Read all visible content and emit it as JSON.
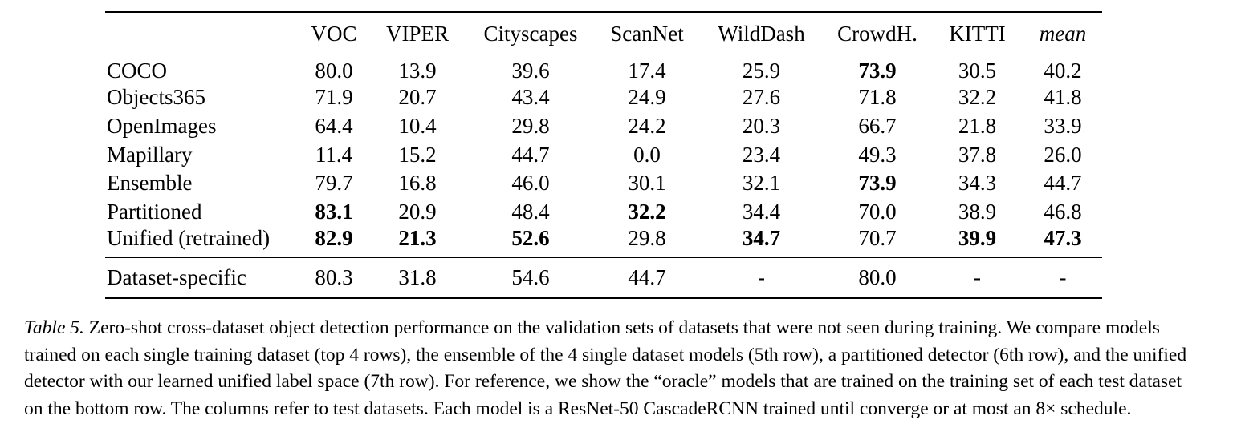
{
  "table": {
    "columns": [
      "",
      "VOC",
      "VIPER",
      "Cityscapes",
      "ScanNet",
      "WildDash",
      "CrowdH.",
      "KITTI",
      "mean"
    ],
    "rows": [
      {
        "name": "COCO",
        "values": [
          "80.0",
          "13.9",
          "39.6",
          "17.4",
          "25.9",
          "73.9",
          "30.5",
          "40.2"
        ],
        "bold": [
          5
        ]
      },
      {
        "name": "Objects365",
        "values": [
          "71.9",
          "20.7",
          "43.4",
          "24.9",
          "27.6",
          "71.8",
          "32.2",
          "41.8"
        ],
        "bold": []
      },
      {
        "name": "OpenImages",
        "values": [
          "64.4",
          "10.4",
          "29.8",
          "24.2",
          "20.3",
          "66.7",
          "21.8",
          "33.9"
        ],
        "bold": []
      },
      {
        "name": "Mapillary",
        "values": [
          "11.4",
          "15.2",
          "44.7",
          "0.0",
          "23.4",
          "49.3",
          "37.8",
          "26.0"
        ],
        "bold": []
      },
      {
        "name": "Ensemble",
        "values": [
          "79.7",
          "16.8",
          "46.0",
          "30.1",
          "32.1",
          "73.9",
          "34.3",
          "44.7"
        ],
        "bold": [
          5
        ]
      },
      {
        "name": "Partitioned",
        "values": [
          "83.1",
          "20.9",
          "48.4",
          "32.2",
          "34.4",
          "70.0",
          "38.9",
          "46.8"
        ],
        "bold": [
          0,
          3
        ]
      },
      {
        "name": "Unified (retrained)",
        "values": [
          "82.9",
          "21.3",
          "52.6",
          "29.8",
          "34.7",
          "70.7",
          "39.9",
          "47.3"
        ],
        "bold": [
          0,
          1,
          2,
          4,
          6,
          7
        ]
      }
    ],
    "footer_row": {
      "name": "Dataset-specific",
      "values": [
        "80.3",
        "31.8",
        "54.6",
        "44.7",
        "-",
        "80.0",
        "-",
        "-"
      ]
    }
  },
  "caption": {
    "label": "Table 5.",
    "text": " Zero-shot cross-dataset object detection performance on the validation sets of datasets that were not seen during training. We compare models trained on each single training dataset (top 4 rows), the ensemble of the 4 single dataset models (5th row), a partitioned detector (6th row), and the unified detector with our learned unified label space (7th row). For reference, we show the “oracle” models that are trained on the training set of each test dataset on the bottom row. The columns refer to test datasets. Each model is a ResNet-50 CascadeRCNN trained until converge or at most an 8× schedule."
  }
}
